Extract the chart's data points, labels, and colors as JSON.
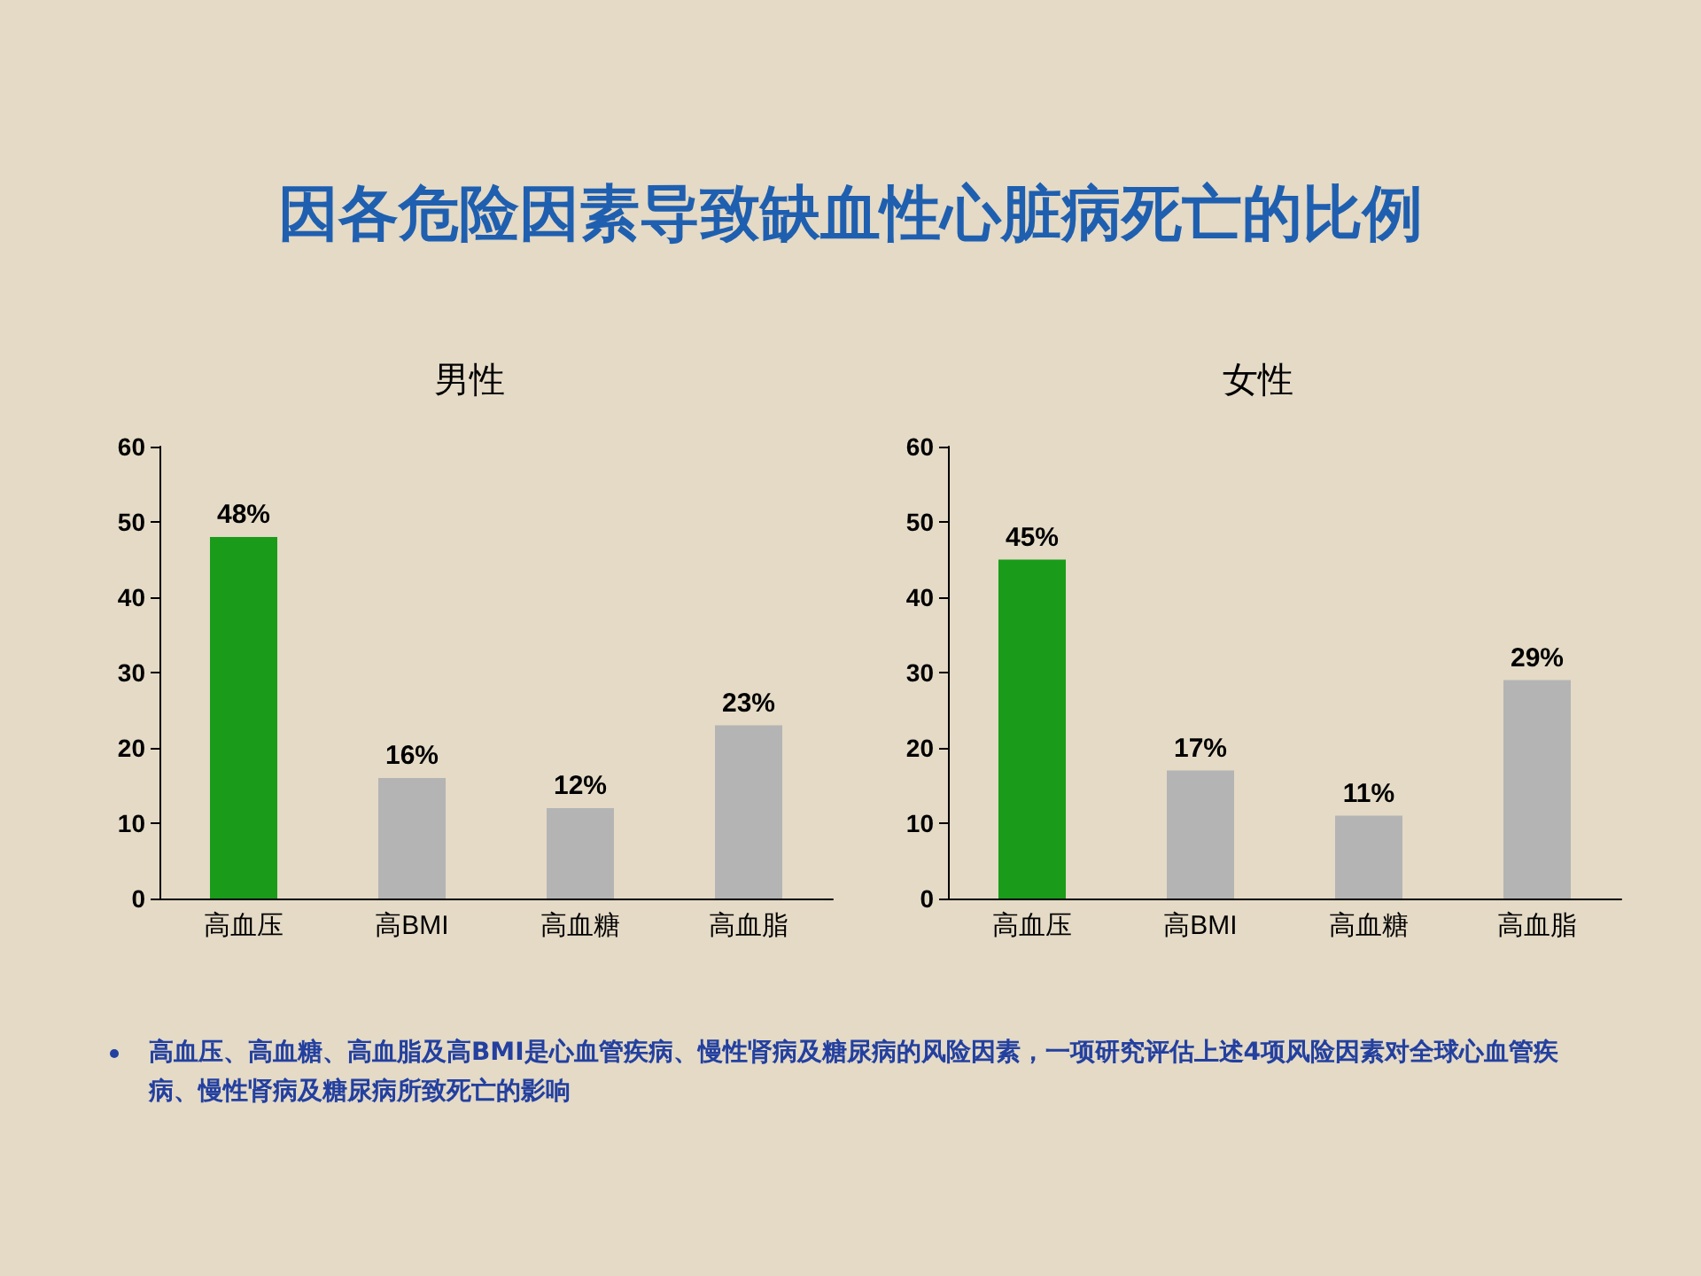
{
  "chart_data": [
    {
      "type": "other",
      "title": "因各危险因素导致缺血性心脏病死亡的比例",
      "annotations": [
        "高血压、高血糖、高血脂及高BMI是心血管疾病、慢性肾病及糖尿病的风险因素，一项研究评估上述4项风险因素对全球心血管疾病、慢性肾病及糖尿病所致死亡的影响"
      ]
    },
    {
      "type": "bar",
      "title": "男性",
      "categories": [
        "高血压",
        "高BMI",
        "高血糖",
        "高血脂"
      ],
      "values": [
        48,
        16,
        12,
        23
      ],
      "colors": [
        "#1a9c1a",
        "#b4b4b4",
        "#b4b4b4",
        "#b4b4b4"
      ],
      "value_labels": [
        "48%",
        "16%",
        "12%",
        "23%"
      ],
      "ylim": [
        0,
        60
      ],
      "yticks": [
        0,
        10,
        20,
        30,
        40,
        50,
        60
      ],
      "grid": false
    },
    {
      "type": "bar",
      "title": "女性",
      "categories": [
        "高血压",
        "高BMI",
        "高血糖",
        "高血脂"
      ],
      "values": [
        45,
        17,
        11,
        29
      ],
      "colors": [
        "#1a9c1a",
        "#b4b4b4",
        "#b4b4b4",
        "#b4b4b4"
      ],
      "value_labels": [
        "45%",
        "17%",
        "11%",
        "29%"
      ],
      "ylim": [
        0,
        60
      ],
      "yticks": [
        0,
        10,
        20,
        30,
        40,
        50,
        60
      ],
      "grid": false
    }
  ]
}
